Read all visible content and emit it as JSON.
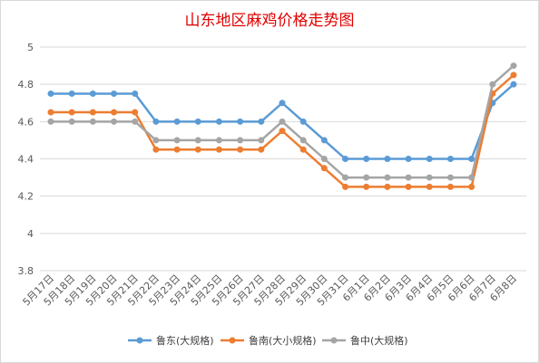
{
  "chart_data": {
    "type": "line",
    "title": "山东地区麻鸡价格走势图",
    "xlabel": "",
    "ylabel": "",
    "ylim": [
      3.8,
      5
    ],
    "yticks": [
      "3.8",
      "4",
      "4.2",
      "4.4",
      "4.6",
      "4.8",
      "5"
    ],
    "grid": true,
    "legend_position": "bottom",
    "categories": [
      "5月17日",
      "5月18日",
      "5月19日",
      "5月20日",
      "5月21日",
      "5月22日",
      "5月23日",
      "5月24日",
      "5月25日",
      "5月26日",
      "5月27日",
      "5月28日",
      "5月29日",
      "5月30日",
      "5月31日",
      "6月1日",
      "6月2日",
      "6月3日",
      "6月4日",
      "6月5日",
      "6月6日",
      "6月7日",
      "6月8日"
    ],
    "series": [
      {
        "name": "鲁东(大规格)",
        "color": "#5b9bd5",
        "values": [
          4.75,
          4.75,
          4.75,
          4.75,
          4.75,
          4.6,
          4.6,
          4.6,
          4.6,
          4.6,
          4.6,
          4.7,
          4.6,
          4.5,
          4.4,
          4.4,
          4.4,
          4.4,
          4.4,
          4.4,
          4.4,
          4.7,
          4.8
        ]
      },
      {
        "name": "鲁南(大小规格)",
        "color": "#ed7d31",
        "values": [
          4.65,
          4.65,
          4.65,
          4.65,
          4.65,
          4.45,
          4.45,
          4.45,
          4.45,
          4.45,
          4.45,
          4.55,
          4.45,
          4.35,
          4.25,
          4.25,
          4.25,
          4.25,
          4.25,
          4.25,
          4.25,
          4.75,
          4.85
        ]
      },
      {
        "name": "鲁中(大规格)",
        "color": "#a5a5a5",
        "values": [
          4.6,
          4.6,
          4.6,
          4.6,
          4.6,
          4.5,
          4.5,
          4.5,
          4.5,
          4.5,
          4.5,
          4.6,
          4.5,
          4.4,
          4.3,
          4.3,
          4.3,
          4.3,
          4.3,
          4.3,
          4.3,
          4.8,
          4.9
        ]
      }
    ]
  }
}
